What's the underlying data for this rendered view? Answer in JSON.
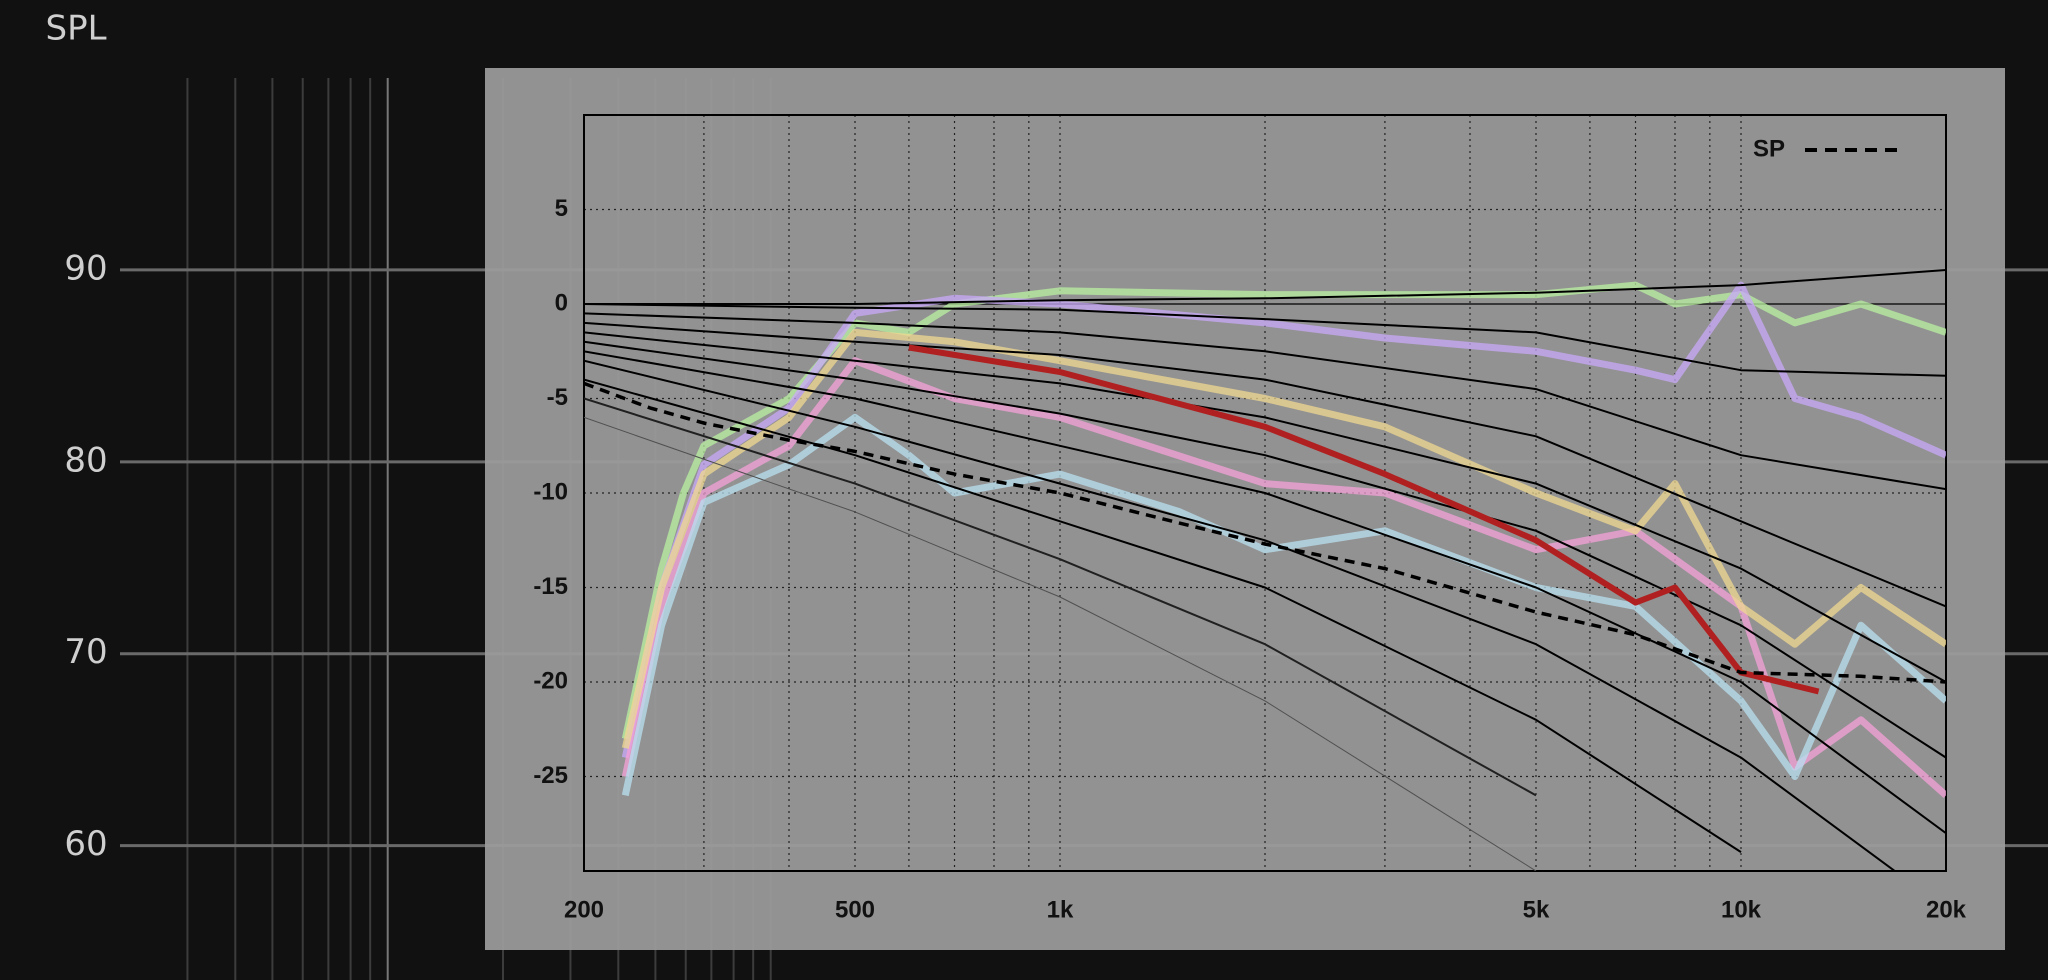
{
  "chart_data": [
    {
      "type": "line",
      "y_label": "SPL",
      "xscale": "log",
      "xlim": [
        20,
        20000
      ],
      "ylim": [
        53,
        100
      ],
      "yticks": [
        60,
        70,
        80,
        90
      ],
      "xminor": [
        30,
        40,
        50,
        60,
        70,
        80,
        90,
        100,
        200,
        300,
        400,
        500,
        600,
        700,
        800,
        900,
        1000
      ],
      "grid": true
    },
    {
      "type": "line",
      "xscale": "log",
      "xlim": [
        200,
        20000
      ],
      "ylim": [
        -30,
        10
      ],
      "xticks": [
        200,
        500,
        {
          "value": 1000,
          "label": "1k"
        },
        {
          "value": 5000,
          "label": "5k"
        },
        {
          "value": 10000,
          "label": "10k"
        },
        {
          "value": 20000,
          "label": "20k"
        }
      ],
      "xminor": [
        300,
        400,
        600,
        700,
        800,
        900,
        2000,
        3000,
        4000,
        6000,
        7000,
        8000,
        9000
      ],
      "yticks": [
        5,
        0,
        -5,
        -10,
        -15,
        -20,
        -25
      ],
      "grid": true,
      "legend": "upper right",
      "series": [
        {
          "color": "#b8f0a0",
          "x": [
            230,
            260,
            280,
            300,
            400,
            500,
            600,
            700,
            1000,
            2000,
            3000,
            5000,
            7000,
            8000,
            10000,
            12000,
            15000,
            20000
          ],
          "values": [
            -23,
            -14,
            -10,
            -7.5,
            -5,
            -1,
            -1.5,
            0,
            0.7,
            0.5,
            0.5,
            0.5,
            1,
            0,
            0.5,
            -1,
            0,
            -1.5
          ]
        },
        {
          "color": "#c8a8f8",
          "x": [
            230,
            260,
            300,
            400,
            500,
            700,
            1000,
            2000,
            3000,
            5000,
            7000,
            8000,
            10000,
            12000,
            15000,
            20000
          ],
          "values": [
            -24,
            -15,
            -8.5,
            -5.5,
            -0.5,
            0.3,
            0,
            -1,
            -1.8,
            -2.5,
            -3.5,
            -4,
            1,
            -5,
            -6,
            -8
          ]
        },
        {
          "color": "#f4a0d8",
          "x": [
            230,
            260,
            300,
            400,
            500,
            700,
            1000,
            2000,
            3000,
            5000,
            7000,
            10000,
            12000,
            15000,
            20000
          ],
          "values": [
            -25,
            -16,
            -10,
            -7.5,
            -3,
            -5,
            -6,
            -9.5,
            -10,
            -13,
            -12,
            -16,
            -24.5,
            -22,
            -26
          ]
        },
        {
          "color": "#f0d890",
          "x": [
            230,
            260,
            300,
            400,
            500,
            700,
            1000,
            2000,
            3000,
            5000,
            7000,
            8000,
            10000,
            12000,
            15000,
            20000
          ],
          "values": [
            -23.5,
            -15,
            -9,
            -6,
            -1.5,
            -2,
            -3,
            -5,
            -6.5,
            -10,
            -12,
            -9.5,
            -16,
            -18,
            -15,
            -18
          ]
        },
        {
          "color": "#b8e0f0",
          "x": [
            230,
            260,
            300,
            400,
            500,
            600,
            700,
            1000,
            1500,
            2000,
            3000,
            5000,
            7000,
            10000,
            12000,
            15000,
            20000
          ],
          "values": [
            -26,
            -17,
            -10.5,
            -8.5,
            -6,
            -8,
            -10,
            -9,
            -11,
            -13,
            -12,
            -15,
            -16,
            -21,
            -25,
            -17,
            -21
          ]
        },
        {
          "color": "#000000",
          "x": [
            200,
            500,
            1000,
            2000,
            5000,
            10000,
            20000
          ],
          "values": [
            0,
            0,
            0.2,
            0.3,
            0.6,
            1,
            1.8
          ]
        },
        {
          "color": "#000000",
          "x": [
            200,
            500,
            1000,
            2000,
            5000,
            10000,
            20000
          ],
          "values": [
            0,
            -0.2,
            -0.3,
            -0.8,
            -1.5,
            -3.5,
            -3.8
          ]
        },
        {
          "color": "#000000",
          "x": [
            200,
            500,
            1000,
            2000,
            5000,
            10000,
            20000
          ],
          "values": [
            -0.5,
            -1,
            -1.5,
            -2.5,
            -4.5,
            -8,
            -9.8
          ]
        },
        {
          "color": "#000000",
          "x": [
            200,
            500,
            1000,
            2000,
            5000,
            10000,
            20000
          ],
          "values": [
            -1,
            -2,
            -2.7,
            -4,
            -7,
            -11.5,
            -16
          ]
        },
        {
          "color": "#000000",
          "x": [
            200,
            500,
            1000,
            2000,
            5000,
            10000,
            20000
          ],
          "values": [
            -1.5,
            -3,
            -4.2,
            -6,
            -9.5,
            -14,
            -20
          ]
        },
        {
          "color": "#000000",
          "x": [
            200,
            500,
            1000,
            2000,
            5000,
            10000,
            20000
          ],
          "values": [
            -2,
            -4,
            -5.8,
            -8,
            -12,
            -17,
            -24
          ]
        },
        {
          "color": "#000000",
          "x": [
            200,
            500,
            1000,
            2000,
            5000,
            10000,
            20000
          ],
          "values": [
            -2.5,
            -5,
            -7.5,
            -10,
            -15,
            -20,
            -28
          ]
        },
        {
          "color": "#000000",
          "x": [
            200,
            500,
            1000,
            2000,
            5000,
            10000,
            20000
          ],
          "values": [
            -3,
            -6.5,
            -9.5,
            -12.5,
            -18,
            -24,
            -32
          ]
        },
        {
          "color": "#000000",
          "x": [
            200,
            500,
            1000,
            2000,
            5000,
            10000
          ],
          "values": [
            -4,
            -8,
            -11.5,
            -15,
            -22,
            -29
          ]
        },
        {
          "color": "#202020",
          "x": [
            200,
            500,
            1000,
            2000,
            5000
          ],
          "values": [
            -5,
            -9.5,
            -13.5,
            -18,
            -26
          ]
        },
        {
          "color": "#505050",
          "x": [
            200,
            500,
            1000,
            2000,
            5000
          ],
          "values": [
            -6,
            -11,
            -15.5,
            -21,
            -30
          ]
        },
        {
          "color": "#b02020",
          "x": [
            600,
            1000,
            2000,
            3000,
            5000,
            7000,
            8000,
            10000,
            13000
          ],
          "values": [
            -2.3,
            -3.6,
            -6.5,
            -9,
            -12.5,
            -15.8,
            -15,
            -19.5,
            -20.5
          ]
        },
        {
          "name": "SP",
          "color": "#000000",
          "dash": true,
          "x": [
            200,
            250,
            300,
            400,
            500,
            700,
            1000,
            1500,
            2000,
            3000,
            5000,
            7000,
            10000,
            15000,
            20000
          ],
          "values": [
            -4.2,
            -5.5,
            -6.3,
            -7.2,
            -7.8,
            -9,
            -10,
            -11.6,
            -12.7,
            -14,
            -16.3,
            -17.5,
            -19.5,
            -19.7,
            -20
          ]
        }
      ]
    }
  ]
}
